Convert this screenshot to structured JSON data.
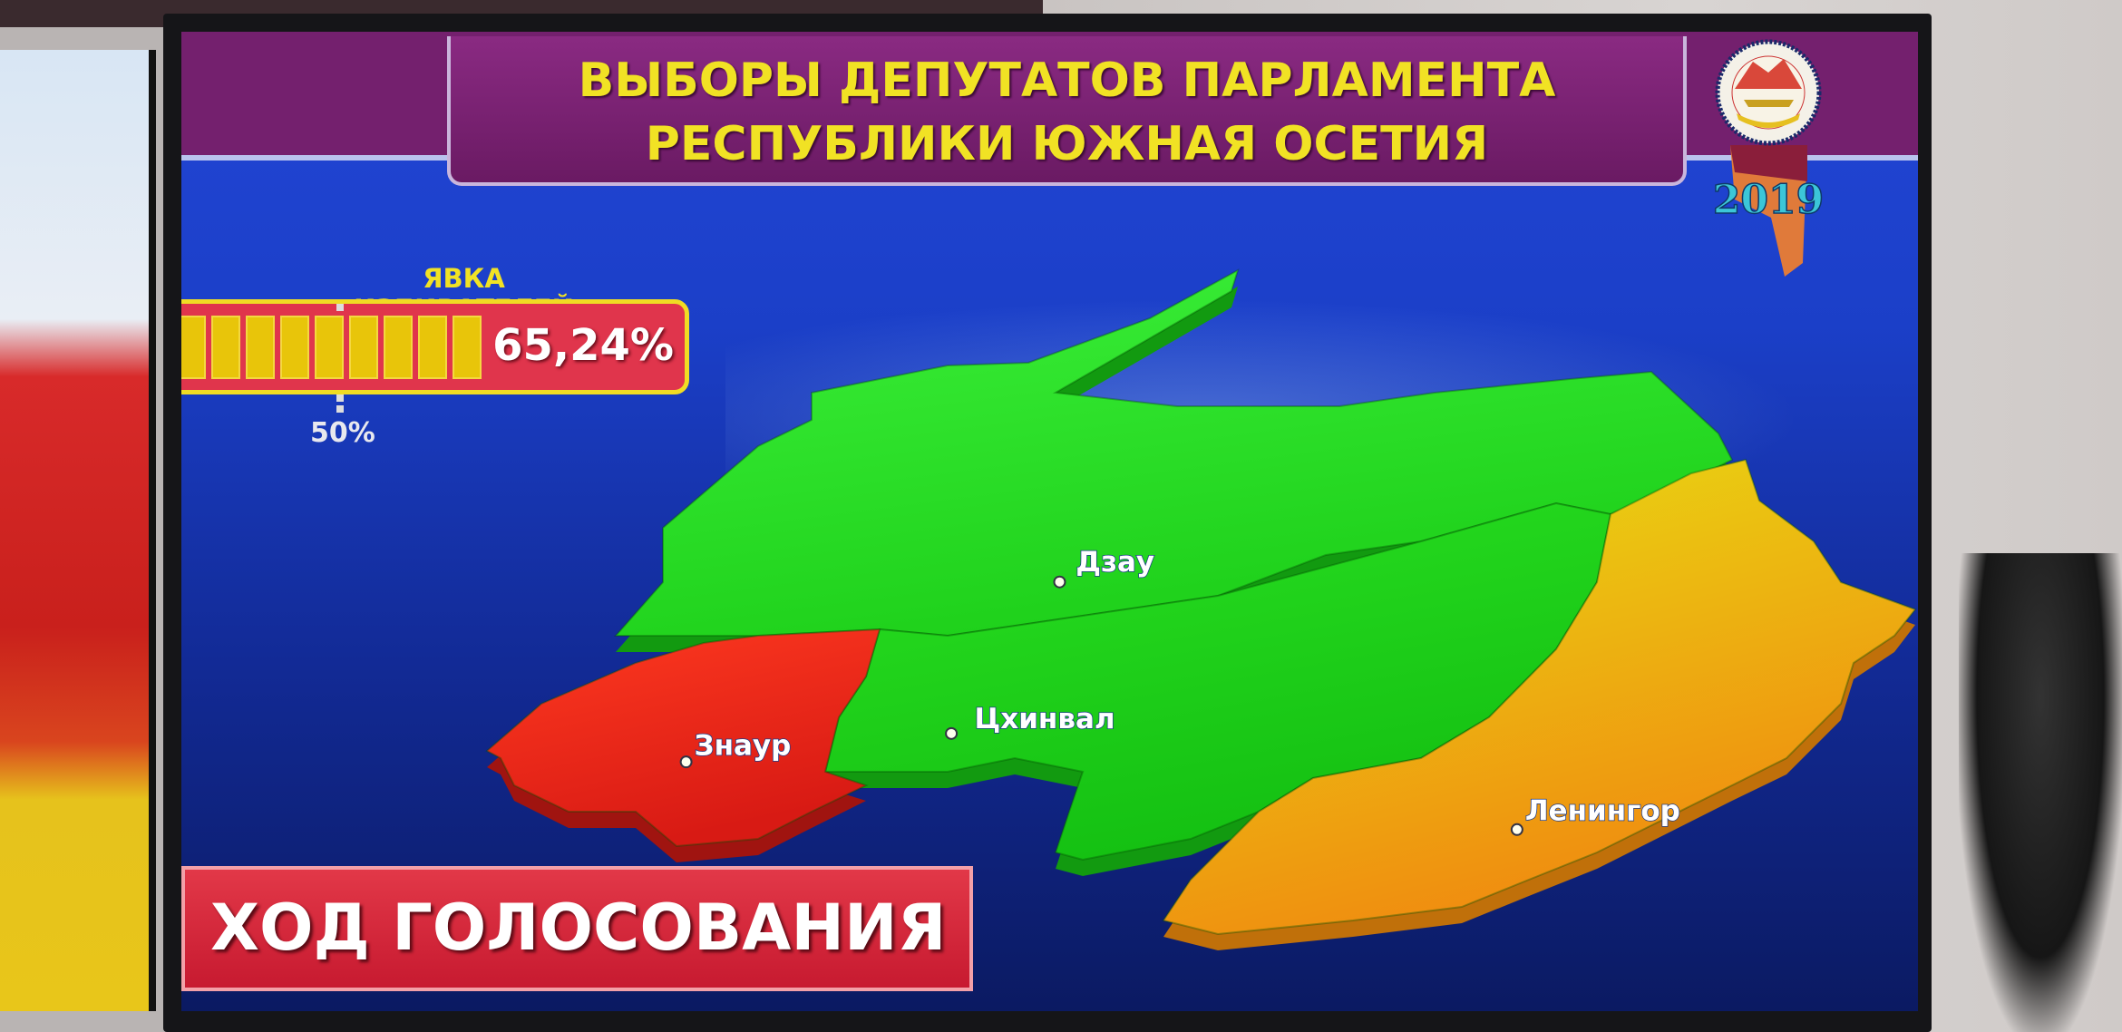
{
  "header": {
    "title_line1": "ВЫБОРЫ ДЕПУТАТОВ ПАРЛАМЕНТА",
    "title_line2": "РЕСПУБЛИКИ ЮЖНАЯ ОСЕТИЯ"
  },
  "emblem": {
    "seal_text_top": "РЕСПУБЛИКӔ ХУССАР ИРЫСТОН",
    "seal_text_bottom": "РЕСПУБЛИКА ЮЖНАЯ ОСЕТИЯ",
    "year": "2019"
  },
  "turnout": {
    "label": "ЯВКА ИЗБИРАТЕЛЕЙ",
    "value_text": "65,24%",
    "value_percent": 65.24,
    "marker_label": "50%",
    "marker_percent": 50
  },
  "map": {
    "regions": [
      {
        "name": "Дзау",
        "color": "#22e01a"
      },
      {
        "name": "Цхинвал",
        "color": "#22e01a"
      },
      {
        "name": "Знаур",
        "color": "#e8241c"
      },
      {
        "name": "Ленингор",
        "color": "#f0c010"
      }
    ]
  },
  "footer": {
    "label": "ХОД ГОЛОСОВАНИЯ"
  },
  "colors": {
    "title_yellow": "#f1e224",
    "banner_purple": "#74206e",
    "background_blue": "#1b3fc8",
    "bar_red": "#e0354c",
    "segment_yellow": "#e8c50a"
  }
}
